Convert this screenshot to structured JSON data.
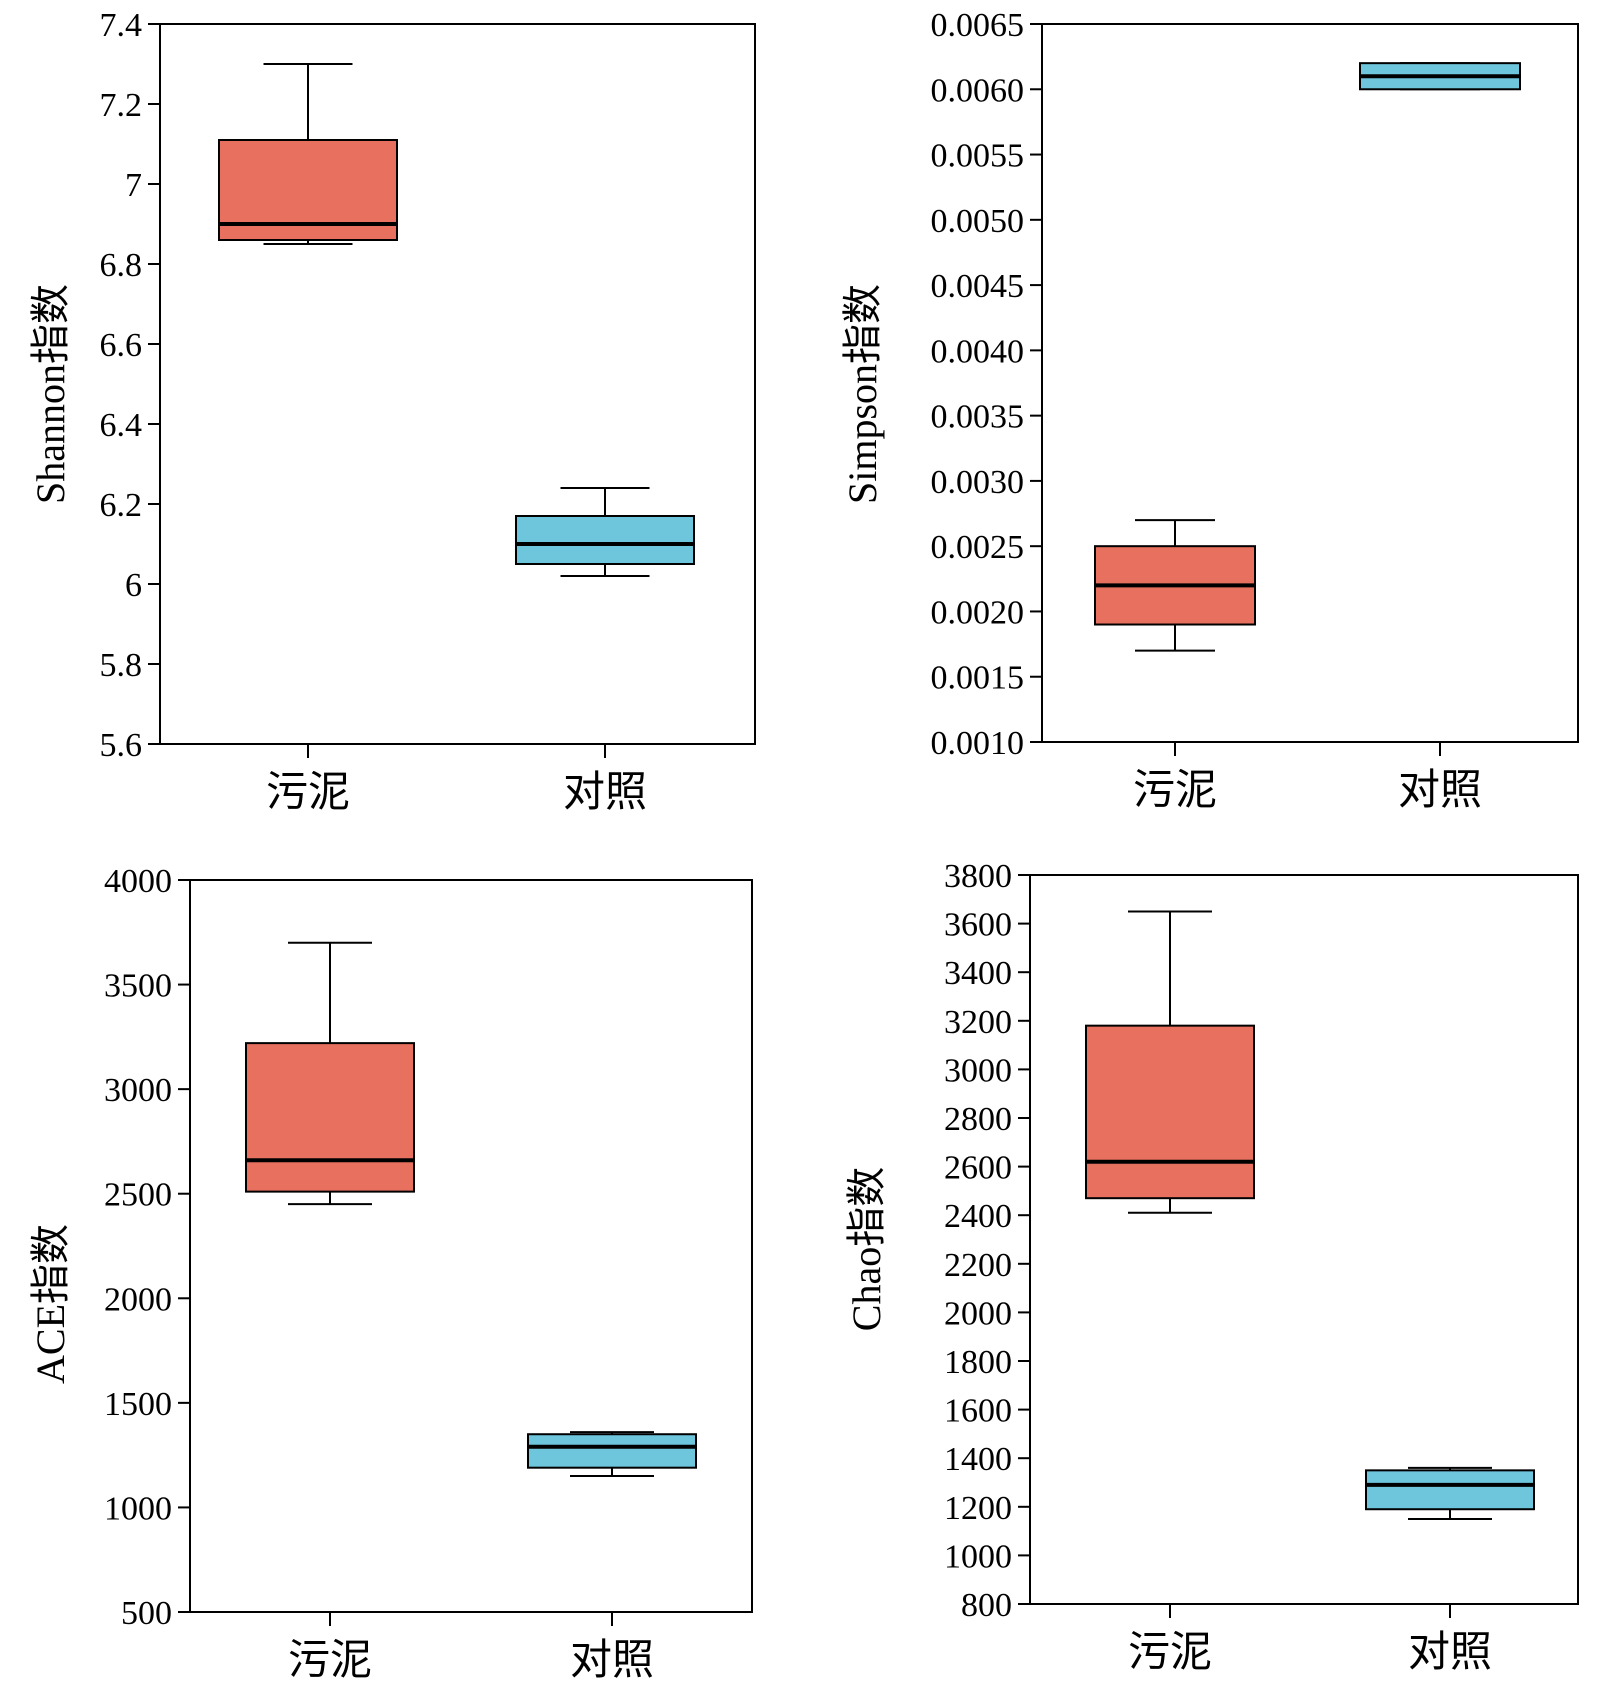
{
  "colors": {
    "sludge": "#e8705e",
    "control": "#6ec6dc",
    "stroke": "#000000"
  },
  "chart_data": [
    {
      "type": "box",
      "ylabel": "Shannon指数",
      "categories": [
        "污泥",
        "对照"
      ],
      "ylim": [
        5.6,
        7.4
      ],
      "yticks": [
        5.6,
        5.8,
        6,
        6.2,
        6.4,
        6.6,
        6.8,
        7,
        7.2,
        7.4
      ],
      "ytick_labels": [
        "5.6",
        "5.8",
        "6",
        "6.2",
        "6.4",
        "6.6",
        "6.8",
        "7",
        "7.2",
        "7.4"
      ],
      "boxes": [
        {
          "name": "污泥",
          "min": 6.85,
          "q1": 6.86,
          "median": 6.9,
          "q3": 7.11,
          "max": 7.3
        },
        {
          "name": "对照",
          "min": 6.02,
          "q1": 6.05,
          "median": 6.1,
          "q3": 6.17,
          "max": 6.24
        }
      ]
    },
    {
      "type": "box",
      "ylabel": "Simpson指数",
      "categories": [
        "污泥",
        "对照"
      ],
      "ylim": [
        0.001,
        0.0065
      ],
      "yticks": [
        0.001,
        0.0015,
        0.002,
        0.0025,
        0.003,
        0.0035,
        0.004,
        0.0045,
        0.005,
        0.0055,
        0.006,
        0.0065
      ],
      "ytick_labels": [
        "0.0010",
        "0.0015",
        "0.0020",
        "0.0025",
        "0.0030",
        "0.0035",
        "0.0040",
        "0.0045",
        "0.0050",
        "0.0055",
        "0.0060",
        "0.0065"
      ],
      "boxes": [
        {
          "name": "污泥",
          "min": 0.0017,
          "q1": 0.0019,
          "median": 0.0022,
          "q3": 0.0025,
          "max": 0.0027
        },
        {
          "name": "对照",
          "min": 0.006,
          "q1": 0.006,
          "median": 0.0061,
          "q3": 0.0062,
          "max": 0.0062
        }
      ]
    },
    {
      "type": "box",
      "ylabel": "ACE指数",
      "categories": [
        "污泥",
        "对照"
      ],
      "ylim": [
        500,
        4000
      ],
      "yticks": [
        500,
        1000,
        1500,
        2000,
        2500,
        3000,
        3500,
        4000
      ],
      "ytick_labels": [
        "500",
        "1000",
        "1500",
        "2000",
        "2500",
        "3000",
        "3500",
        "4000"
      ],
      "boxes": [
        {
          "name": "污泥",
          "min": 2450,
          "q1": 2510,
          "median": 2660,
          "q3": 3220,
          "max": 3700
        },
        {
          "name": "对照",
          "min": 1150,
          "q1": 1190,
          "median": 1290,
          "q3": 1350,
          "max": 1360
        }
      ]
    },
    {
      "type": "box",
      "ylabel": "Chao指数",
      "categories": [
        "污泥",
        "对照"
      ],
      "ylim": [
        800,
        3800
      ],
      "yticks": [
        800,
        1000,
        1200,
        1400,
        1600,
        1800,
        2000,
        2200,
        2400,
        2600,
        2800,
        3000,
        3200,
        3400,
        3600,
        3800
      ],
      "ytick_labels": [
        "800",
        "1000",
        "1200",
        "1400",
        "1600",
        "1800",
        "2000",
        "2200",
        "2400",
        "2600",
        "2800",
        "3000",
        "3200",
        "3400",
        "3600",
        "3800"
      ],
      "boxes": [
        {
          "name": "污泥",
          "min": 2410,
          "q1": 2470,
          "median": 2620,
          "q3": 3180,
          "max": 3650
        },
        {
          "name": "对照",
          "min": 1150,
          "q1": 1190,
          "median": 1290,
          "q3": 1350,
          "max": 1360
        }
      ]
    }
  ]
}
